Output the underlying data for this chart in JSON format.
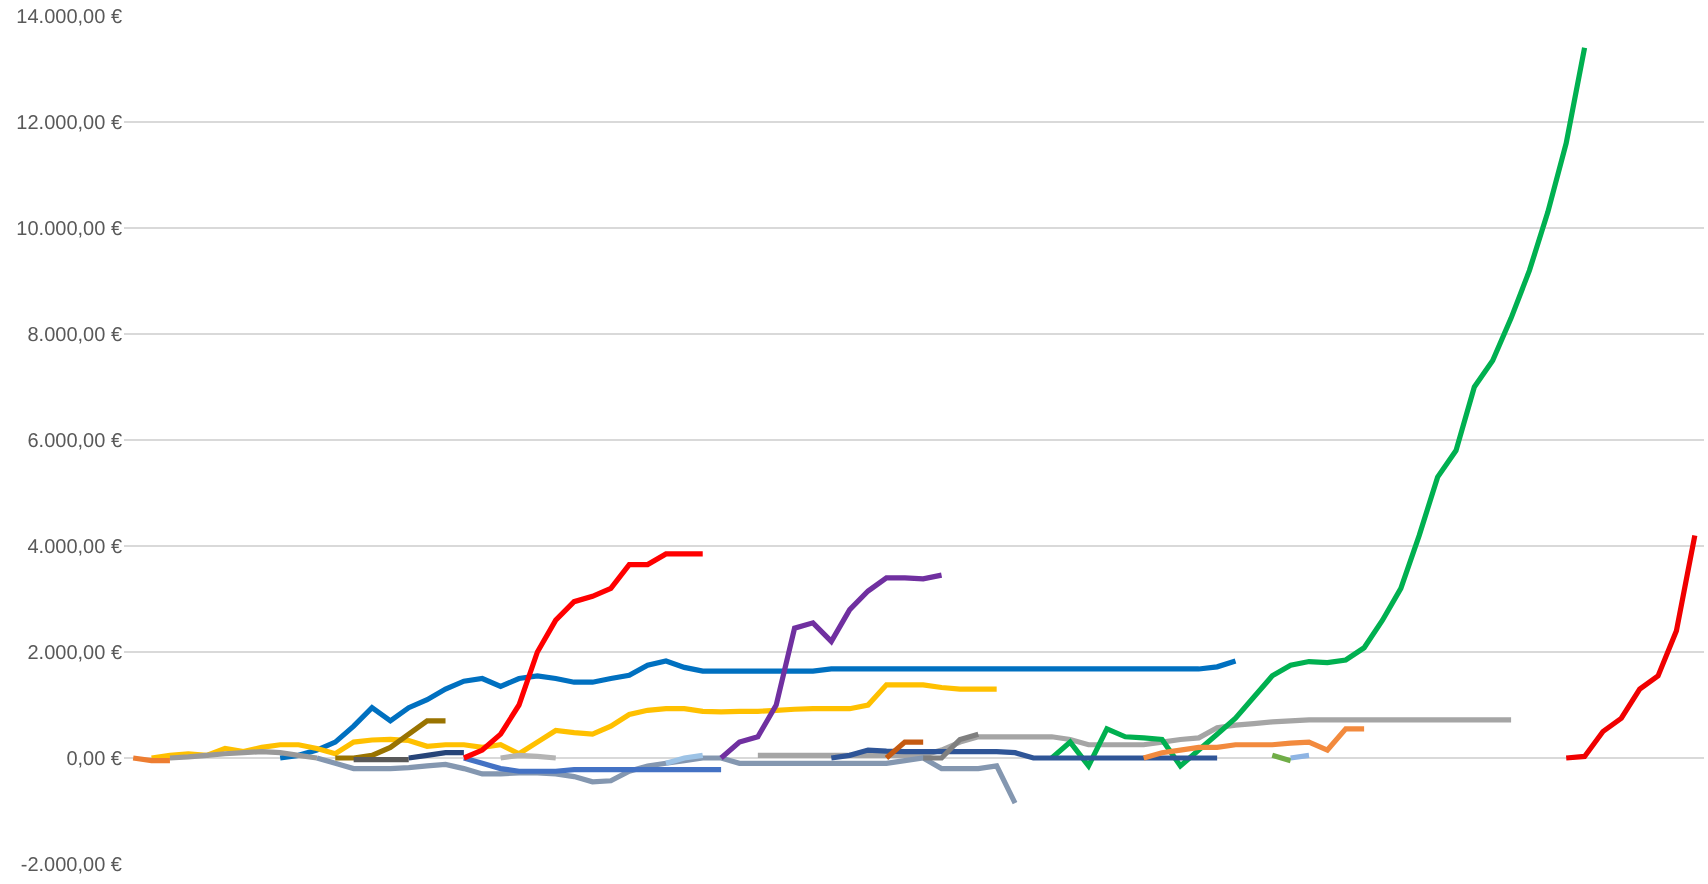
{
  "chart_data": {
    "type": "line",
    "categories": [
      null,
      null,
      null,
      null,
      null,
      null,
      null,
      null,
      null,
      null,
      null,
      null,
      null,
      null,
      null,
      null,
      null,
      null,
      null,
      null,
      null,
      null,
      null,
      null,
      null,
      null,
      null,
      null,
      null,
      null,
      null,
      null,
      null,
      null,
      null,
      null,
      null,
      null,
      null,
      null,
      null,
      null,
      null,
      null,
      null,
      null,
      null,
      null,
      null,
      null,
      null,
      null,
      null,
      null,
      null,
      null,
      null,
      null,
      null,
      null,
      null,
      null,
      null,
      null,
      null,
      null,
      null,
      null,
      null,
      null,
      null,
      null,
      null,
      null,
      null,
      null,
      null,
      null,
      null,
      null,
      null,
      null,
      null,
      null,
      null,
      null
    ],
    "ylim": [
      -2000,
      14000
    ],
    "yticks": [
      {
        "value": -2000,
        "label": "-2.000,00 €"
      },
      {
        "value": 0,
        "label": "0,00 €"
      },
      {
        "value": 2000,
        "label": "2.000,00 €"
      },
      {
        "value": 4000,
        "label": "4.000,00 €"
      },
      {
        "value": 6000,
        "label": "6.000,00 €"
      },
      {
        "value": 8000,
        "label": "8.000,00 €"
      },
      {
        "value": 10000,
        "label": "10.000,00 €"
      },
      {
        "value": 12000,
        "label": "12.000,00 €"
      },
      {
        "value": 14000,
        "label": "14.000,00 €"
      }
    ],
    "grid": "y",
    "marker": "none",
    "line_style": "solid",
    "tick_labels": "y",
    "series": [
      {
        "color": "#ed7d31",
        "values": [
          0,
          -50,
          -50,
          null,
          null,
          null,
          null,
          null,
          null,
          null,
          null,
          null,
          null,
          null,
          null,
          null,
          null,
          null,
          null,
          null,
          null,
          null,
          null,
          null,
          null,
          null,
          null,
          null,
          null,
          null,
          null,
          null,
          null,
          null,
          null,
          null,
          null,
          null,
          null,
          null,
          null,
          null,
          null,
          null,
          null,
          null,
          null,
          null,
          null,
          null,
          null,
          null,
          null,
          null,
          null,
          null,
          null,
          null,
          null,
          null,
          null,
          null,
          null,
          null,
          null,
          null,
          null,
          null,
          null,
          null,
          null,
          null,
          null,
          null,
          null,
          null,
          null,
          null,
          null,
          null,
          null,
          null,
          null,
          null,
          null,
          null
        ]
      },
      {
        "color": "#999999",
        "values": [
          null,
          null,
          0,
          20,
          50,
          80,
          100,
          120,
          100,
          50,
          0,
          null,
          null,
          null,
          null,
          null,
          null,
          null,
          null,
          null,
          null,
          null,
          null,
          null,
          null,
          null,
          null,
          null,
          null,
          null,
          null,
          null,
          null,
          null,
          null,
          null,
          null,
          null,
          null,
          null,
          null,
          null,
          null,
          null,
          null,
          null,
          null,
          null,
          null,
          null,
          null,
          null,
          null,
          null,
          null,
          null,
          null,
          null,
          null,
          null,
          null,
          null,
          null,
          null,
          null,
          null,
          null,
          null,
          null,
          null,
          null,
          null,
          null,
          null,
          null,
          null,
          null,
          null,
          null,
          null,
          null,
          null,
          null,
          null,
          null,
          null
        ]
      },
      {
        "color": "#ffc000",
        "values": [
          null,
          0,
          50,
          80,
          50,
          180,
          120,
          200,
          250,
          250,
          180,
          80,
          300,
          340,
          350,
          330,
          220,
          250,
          250,
          200,
          250,
          80,
          300,
          520,
          480,
          450,
          600,
          820,
          900,
          930,
          930,
          880,
          870,
          880,
          880,
          900,
          920,
          930,
          930,
          930,
          1000,
          1380,
          1380,
          1380,
          1330,
          1300,
          1300,
          1300,
          null,
          null,
          null,
          null,
          null,
          null,
          null,
          null,
          null,
          null,
          null,
          null,
          null,
          null,
          null,
          null,
          null,
          null,
          null,
          null,
          null,
          null,
          null,
          null,
          null,
          null,
          null,
          null,
          null,
          null,
          null,
          null,
          null,
          null,
          null,
          null,
          null,
          null
        ]
      },
      {
        "color": "#8497b0",
        "values": [
          null,
          null,
          null,
          null,
          null,
          null,
          null,
          null,
          null,
          null,
          0,
          -100,
          -200,
          -200,
          -200,
          -180,
          -150,
          -120,
          -200,
          -300,
          -300,
          -280,
          -280,
          -300,
          -350,
          -450,
          -430,
          -250,
          -150,
          -100,
          -50,
          0,
          0,
          -100,
          -100,
          -100,
          -100,
          -100,
          -100,
          -100,
          -100,
          -100,
          -50,
          0,
          -200,
          -200,
          -200,
          -150,
          -850,
          null,
          null,
          null,
          null,
          null,
          null,
          null,
          null,
          null,
          null,
          null,
          null,
          null,
          null,
          null,
          null,
          null,
          null,
          null,
          null,
          null,
          null,
          null,
          null,
          null,
          null,
          null,
          null,
          null,
          null,
          null,
          null,
          null,
          null,
          null,
          null,
          null
        ]
      },
      {
        "color": "#0070c0",
        "values": [
          null,
          null,
          null,
          null,
          null,
          null,
          null,
          null,
          0,
          50,
          150,
          300,
          600,
          950,
          700,
          950,
          1100,
          1300,
          1450,
          1500,
          1350,
          1500,
          1550,
          1500,
          1430,
          1430,
          1500,
          1560,
          1750,
          1830,
          1710,
          1640,
          1640,
          1640,
          1640,
          1640,
          1640,
          1640,
          1680,
          1680,
          1680,
          1680,
          1680,
          1680,
          1680,
          1680,
          1680,
          1680,
          1680,
          1680,
          1680,
          1680,
          1680,
          1680,
          1680,
          1680,
          1680,
          1680,
          1680,
          1720,
          1830,
          null,
          null,
          null,
          null,
          null,
          null,
          null,
          null,
          null,
          null,
          null,
          null,
          null,
          null,
          null,
          null,
          null,
          null,
          null,
          null,
          null,
          null,
          null,
          null,
          null
        ]
      },
      {
        "color": "#997300",
        "values": [
          null,
          null,
          null,
          null,
          null,
          null,
          null,
          null,
          null,
          null,
          null,
          0,
          0,
          50,
          200,
          450,
          700,
          700,
          null,
          null,
          null,
          null,
          null,
          null,
          null,
          null,
          null,
          null,
          null,
          null,
          null,
          null,
          null,
          null,
          null,
          null,
          null,
          null,
          null,
          null,
          null,
          null,
          null,
          null,
          null,
          null,
          null,
          null,
          null,
          null,
          null,
          null,
          null,
          null,
          null,
          null,
          null,
          null,
          null,
          null,
          null,
          null,
          null,
          null,
          null,
          null,
          null,
          null,
          null,
          null,
          null,
          null,
          null,
          null,
          null,
          null,
          null,
          null,
          null,
          null,
          null,
          null,
          null,
          null,
          null,
          null
        ]
      },
      {
        "color": "#595959",
        "values": [
          null,
          null,
          null,
          null,
          null,
          null,
          null,
          null,
          null,
          null,
          null,
          null,
          -30,
          -30,
          -30,
          -30,
          null,
          null,
          null,
          null,
          null,
          null,
          null,
          null,
          null,
          null,
          null,
          null,
          null,
          null,
          null,
          null,
          null,
          null,
          null,
          null,
          null,
          null,
          null,
          null,
          null,
          null,
          null,
          null,
          null,
          null,
          null,
          null,
          null,
          null,
          null,
          null,
          null,
          null,
          null,
          null,
          null,
          null,
          null,
          null,
          null,
          null,
          null,
          null,
          null,
          null,
          null,
          null,
          null,
          null,
          null,
          null,
          null,
          null,
          null,
          null,
          null,
          null,
          null,
          null,
          null,
          null,
          null,
          null,
          null,
          null
        ]
      },
      {
        "color": "#264478",
        "values": [
          null,
          null,
          null,
          null,
          null,
          null,
          null,
          null,
          null,
          null,
          null,
          null,
          null,
          null,
          null,
          0,
          50,
          100,
          100,
          null,
          null,
          null,
          null,
          null,
          null,
          null,
          null,
          null,
          null,
          null,
          null,
          null,
          null,
          null,
          null,
          null,
          null,
          null,
          null,
          null,
          null,
          null,
          null,
          null,
          null,
          null,
          null,
          null,
          null,
          null,
          null,
          null,
          null,
          null,
          null,
          null,
          null,
          null,
          null,
          null,
          null,
          null,
          null,
          null,
          null,
          null,
          null,
          null,
          null,
          null,
          null,
          null,
          null,
          null,
          null,
          null,
          null,
          null,
          null,
          null,
          null,
          null,
          null,
          null,
          null,
          null
        ]
      },
      {
        "color": "#4472c4",
        "values": [
          null,
          null,
          null,
          null,
          null,
          null,
          null,
          null,
          null,
          null,
          null,
          null,
          null,
          null,
          null,
          null,
          null,
          null,
          0,
          -100,
          -200,
          -250,
          -250,
          -250,
          -220,
          -220,
          -220,
          -220,
          -220,
          -220,
          -220,
          -220,
          -220,
          null,
          null,
          null,
          null,
          null,
          null,
          null,
          null,
          null,
          null,
          null,
          null,
          null,
          null,
          null,
          null,
          null,
          null,
          null,
          null,
          null,
          null,
          null,
          null,
          null,
          null,
          null,
          null,
          null,
          null,
          null,
          null,
          null,
          null,
          null,
          null,
          null,
          null,
          null,
          null,
          null,
          null,
          null,
          null,
          null,
          null,
          null,
          null,
          null,
          null,
          null,
          null,
          null
        ]
      },
      {
        "color": "#b4b4b4",
        "values": [
          null,
          null,
          null,
          null,
          null,
          null,
          null,
          null,
          null,
          null,
          null,
          null,
          null,
          null,
          null,
          null,
          null,
          null,
          null,
          null,
          0,
          50,
          30,
          0,
          null,
          null,
          null,
          null,
          null,
          null,
          null,
          null,
          null,
          null,
          null,
          null,
          null,
          null,
          null,
          null,
          null,
          null,
          null,
          null,
          null,
          null,
          null,
          null,
          null,
          null,
          null,
          null,
          null,
          null,
          null,
          null,
          null,
          null,
          null,
          null,
          null,
          null,
          null,
          null,
          null,
          null,
          null,
          null,
          null,
          null,
          null,
          null,
          null,
          null,
          null,
          null,
          null,
          null,
          null,
          null,
          null,
          null,
          null,
          null,
          null,
          null
        ]
      },
      {
        "color": "#ff0000",
        "values": [
          null,
          null,
          null,
          null,
          null,
          null,
          null,
          null,
          null,
          null,
          null,
          null,
          null,
          null,
          null,
          null,
          null,
          null,
          0,
          150,
          450,
          1000,
          2000,
          2600,
          2950,
          3050,
          3200,
          3650,
          3650,
          3850,
          3850,
          3850,
          null,
          null,
          null,
          null,
          null,
          null,
          null,
          null,
          null,
          null,
          null,
          null,
          null,
          null,
          null,
          null,
          null,
          null,
          null,
          null,
          null,
          null,
          null,
          null,
          null,
          null,
          null,
          null,
          null,
          null,
          null,
          null,
          null,
          null,
          null,
          null,
          null,
          null,
          null,
          null,
          null,
          null,
          null,
          null,
          null,
          null,
          null,
          null,
          null,
          null,
          null,
          null,
          null,
          null
        ]
      },
      {
        "color": "#9dc3e6",
        "values": [
          null,
          null,
          null,
          null,
          null,
          null,
          null,
          null,
          null,
          null,
          null,
          null,
          null,
          null,
          null,
          null,
          null,
          null,
          null,
          null,
          null,
          null,
          null,
          null,
          null,
          null,
          null,
          null,
          null,
          -100,
          0,
          50,
          null,
          null,
          null,
          null,
          null,
          null,
          null,
          null,
          null,
          null,
          null,
          null,
          null,
          null,
          null,
          null,
          null,
          null,
          null,
          null,
          null,
          null,
          null,
          null,
          null,
          null,
          null,
          null,
          null,
          null,
          null,
          null,
          null,
          null,
          null,
          null,
          null,
          null,
          null,
          null,
          null,
          null,
          null,
          null,
          null,
          null,
          null,
          null,
          null,
          null,
          null,
          null,
          null,
          null
        ]
      },
      {
        "color": "#7030a0",
        "values": [
          null,
          null,
          null,
          null,
          null,
          null,
          null,
          null,
          null,
          null,
          null,
          null,
          null,
          null,
          null,
          null,
          null,
          null,
          null,
          null,
          null,
          null,
          null,
          null,
          null,
          null,
          null,
          null,
          null,
          null,
          null,
          null,
          0,
          300,
          400,
          1000,
          2450,
          2550,
          2200,
          2800,
          3150,
          3400,
          3400,
          3380,
          3450,
          null,
          null,
          null,
          null,
          null,
          null,
          null,
          null,
          null,
          null,
          null,
          null,
          null,
          null,
          null,
          null,
          null,
          null,
          null,
          null,
          null,
          null,
          null,
          null,
          null,
          null,
          null,
          null,
          null,
          null,
          null,
          null,
          null,
          null,
          null,
          null,
          null,
          null,
          null,
          null,
          null
        ]
      },
      {
        "color": "#a5a5a5",
        "values": [
          null,
          null,
          null,
          null,
          null,
          null,
          null,
          null,
          null,
          null,
          null,
          null,
          null,
          null,
          null,
          null,
          null,
          null,
          null,
          null,
          null,
          null,
          null,
          null,
          null,
          null,
          null,
          null,
          null,
          null,
          null,
          null,
          null,
          null,
          50,
          50,
          50,
          50,
          50,
          50,
          50,
          50,
          50,
          50,
          150,
          300,
          400,
          400,
          400,
          400,
          400,
          350,
          250,
          250,
          250,
          250,
          300,
          350,
          380,
          570,
          620,
          650,
          680,
          700,
          720,
          720,
          720,
          720,
          720,
          720,
          720,
          720,
          720,
          720,
          720,
          720,
          null,
          null,
          null,
          null,
          null,
          null,
          null,
          null,
          null,
          null
        ]
      },
      {
        "color": "#2f5597",
        "values": [
          null,
          null,
          null,
          null,
          null,
          null,
          null,
          null,
          null,
          null,
          null,
          null,
          null,
          null,
          null,
          null,
          null,
          null,
          null,
          null,
          null,
          null,
          null,
          null,
          null,
          null,
          null,
          null,
          null,
          null,
          null,
          null,
          null,
          null,
          null,
          null,
          null,
          null,
          0,
          50,
          150,
          130,
          120,
          120,
          120,
          120,
          120,
          120,
          100,
          0,
          0,
          0,
          0,
          0,
          0,
          0,
          0,
          0,
          0,
          0,
          null,
          null,
          null,
          null,
          null,
          null,
          null,
          null,
          null,
          null,
          null,
          null,
          null,
          null,
          null,
          null,
          null,
          null,
          null,
          null,
          null,
          null,
          null,
          null,
          null,
          null
        ]
      },
      {
        "color": "#c55a11",
        "values": [
          null,
          null,
          null,
          null,
          null,
          null,
          null,
          null,
          null,
          null,
          null,
          null,
          null,
          null,
          null,
          null,
          null,
          null,
          null,
          null,
          null,
          null,
          null,
          null,
          null,
          null,
          null,
          null,
          null,
          null,
          null,
          null,
          null,
          null,
          null,
          null,
          null,
          null,
          null,
          null,
          null,
          0,
          300,
          300,
          null,
          null,
          null,
          null,
          null,
          null,
          null,
          null,
          null,
          null,
          null,
          null,
          null,
          null,
          null,
          null,
          null,
          null,
          null,
          null,
          null,
          null,
          null,
          null,
          null,
          null,
          null,
          null,
          null,
          null,
          null,
          null,
          null,
          null,
          null,
          null,
          null,
          null,
          null,
          null,
          null,
          null
        ]
      },
      {
        "color": "#7f7f7f",
        "values": [
          null,
          null,
          null,
          null,
          null,
          null,
          null,
          null,
          null,
          null,
          null,
          null,
          null,
          null,
          null,
          null,
          null,
          null,
          null,
          null,
          null,
          null,
          null,
          null,
          null,
          null,
          null,
          null,
          null,
          null,
          null,
          null,
          null,
          null,
          null,
          null,
          null,
          null,
          null,
          null,
          null,
          null,
          null,
          0,
          0,
          350,
          450,
          null,
          null,
          null,
          null,
          null,
          null,
          null,
          null,
          null,
          null,
          null,
          null,
          null,
          null,
          null,
          null,
          null,
          null,
          null,
          null,
          null,
          null,
          null,
          null,
          null,
          null,
          null,
          null,
          null,
          null,
          null,
          null,
          null,
          null,
          null,
          null,
          null,
          null,
          null
        ]
      },
      {
        "color": "#00b050",
        "values": [
          null,
          null,
          null,
          null,
          null,
          null,
          null,
          null,
          null,
          null,
          null,
          null,
          null,
          null,
          null,
          null,
          null,
          null,
          null,
          null,
          null,
          null,
          null,
          null,
          null,
          null,
          null,
          null,
          null,
          null,
          null,
          null,
          null,
          null,
          null,
          null,
          null,
          null,
          null,
          null,
          null,
          null,
          null,
          null,
          null,
          null,
          null,
          null,
          null,
          null,
          0,
          300,
          -150,
          550,
          400,
          380,
          350,
          -150,
          150,
          450,
          750,
          1150,
          1550,
          1750,
          1820,
          1800,
          1850,
          2080,
          2600,
          3200,
          4200,
          5300,
          5800,
          7000,
          7500,
          8300,
          9200,
          10300,
          11600,
          13400,
          null,
          null,
          null,
          null,
          null,
          null
        ]
      },
      {
        "color": "#f28a3e",
        "values": [
          null,
          null,
          null,
          null,
          null,
          null,
          null,
          null,
          null,
          null,
          null,
          null,
          null,
          null,
          null,
          null,
          null,
          null,
          null,
          null,
          null,
          null,
          null,
          null,
          null,
          null,
          null,
          null,
          null,
          null,
          null,
          null,
          null,
          null,
          null,
          null,
          null,
          null,
          null,
          null,
          null,
          null,
          null,
          null,
          null,
          null,
          null,
          null,
          null,
          null,
          null,
          null,
          null,
          null,
          null,
          0,
          100,
          150,
          200,
          200,
          250,
          250,
          250,
          280,
          300,
          150,
          550,
          550,
          null,
          null,
          null,
          null,
          null,
          null,
          null,
          null,
          null,
          null,
          null,
          null,
          null,
          null,
          null,
          null,
          null,
          null
        ]
      },
      {
        "color": "#70ad47",
        "values": [
          null,
          null,
          null,
          null,
          null,
          null,
          null,
          null,
          null,
          null,
          null,
          null,
          null,
          null,
          null,
          null,
          null,
          null,
          null,
          null,
          null,
          null,
          null,
          null,
          null,
          null,
          null,
          null,
          null,
          null,
          null,
          null,
          null,
          null,
          null,
          null,
          null,
          null,
          null,
          null,
          null,
          null,
          null,
          null,
          null,
          null,
          null,
          null,
          null,
          null,
          null,
          null,
          null,
          null,
          null,
          null,
          null,
          null,
          null,
          null,
          null,
          null,
          50,
          -50,
          null,
          null,
          null,
          null,
          null,
          null,
          null,
          null,
          null,
          null,
          null,
          null,
          null,
          null,
          null,
          null,
          null,
          null,
          null,
          null,
          null,
          null
        ]
      },
      {
        "color": "#8eb4e3",
        "values": [
          null,
          null,
          null,
          null,
          null,
          null,
          null,
          null,
          null,
          null,
          null,
          null,
          null,
          null,
          null,
          null,
          null,
          null,
          null,
          null,
          null,
          null,
          null,
          null,
          null,
          null,
          null,
          null,
          null,
          null,
          null,
          null,
          null,
          null,
          null,
          null,
          null,
          null,
          null,
          null,
          null,
          null,
          null,
          null,
          null,
          null,
          null,
          null,
          null,
          null,
          null,
          null,
          null,
          null,
          null,
          null,
          null,
          null,
          null,
          null,
          null,
          null,
          null,
          0,
          50,
          null,
          null,
          null,
          null,
          null,
          null,
          null,
          null,
          null,
          null,
          null,
          null,
          null,
          null,
          null,
          null,
          null,
          null,
          null,
          null,
          null
        ]
      },
      {
        "color": "#f00000",
        "values": [
          null,
          null,
          null,
          null,
          null,
          null,
          null,
          null,
          null,
          null,
          null,
          null,
          null,
          null,
          null,
          null,
          null,
          null,
          null,
          null,
          null,
          null,
          null,
          null,
          null,
          null,
          null,
          null,
          null,
          null,
          null,
          null,
          null,
          null,
          null,
          null,
          null,
          null,
          null,
          null,
          null,
          null,
          null,
          null,
          null,
          null,
          null,
          null,
          null,
          null,
          null,
          null,
          null,
          null,
          null,
          null,
          null,
          null,
          null,
          null,
          null,
          null,
          null,
          null,
          null,
          null,
          null,
          null,
          null,
          null,
          null,
          null,
          null,
          null,
          null,
          null,
          null,
          null,
          0,
          30,
          500,
          750,
          1300,
          1550,
          2400,
          4200
        ]
      }
    ]
  }
}
